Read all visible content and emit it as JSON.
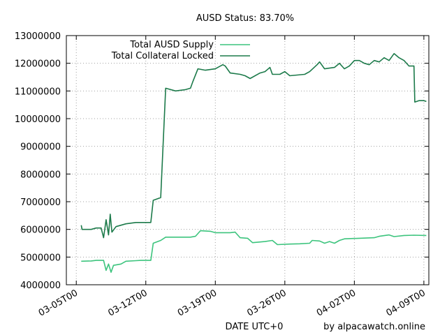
{
  "chart_data": {
    "type": "line",
    "title": "AUSD Status: 83.70%",
    "xlabel": "DATE UTC+0",
    "credit": "by alpacawatch.online",
    "ylabel": "",
    "xlim": [
      "2021-03-04T00:00",
      "2021-04-09T12:00"
    ],
    "ylim": [
      4000000,
      13000000
    ],
    "x_ticks": [
      {
        "date": "2021-03-05T00:00",
        "label": "03-05T00"
      },
      {
        "date": "2021-03-12T00:00",
        "label": "03-12T00"
      },
      {
        "date": "2021-03-19T00:00",
        "label": "03-19T00"
      },
      {
        "date": "2021-03-26T00:00",
        "label": "03-26T00"
      },
      {
        "date": "2021-04-02T00:00",
        "label": "04-02T00"
      },
      {
        "date": "2021-04-09T00:00",
        "label": "04-09T00"
      }
    ],
    "y_ticks": [
      4000000,
      5000000,
      6000000,
      7000000,
      8000000,
      9000000,
      10000000,
      11000000,
      12000000,
      13000000
    ],
    "grid": true,
    "legend_position": "top-left",
    "series": [
      {
        "name": "Total AUSD Supply",
        "color": "#3cc47d",
        "points": [
          [
            "2021-03-05T12:00",
            4850000
          ],
          [
            "2021-03-06T12:00",
            4860000
          ],
          [
            "2021-03-07T00:00",
            4880000
          ],
          [
            "2021-03-07T18:00",
            4880000
          ],
          [
            "2021-03-08T00:00",
            4520000
          ],
          [
            "2021-03-08T06:00",
            4750000
          ],
          [
            "2021-03-08T12:00",
            4450000
          ],
          [
            "2021-03-08T18:00",
            4700000
          ],
          [
            "2021-03-09T12:00",
            4750000
          ],
          [
            "2021-03-10T00:00",
            4850000
          ],
          [
            "2021-03-11T00:00",
            4870000
          ],
          [
            "2021-03-11T12:00",
            4880000
          ],
          [
            "2021-03-12T12:00",
            4880000
          ],
          [
            "2021-03-12T18:00",
            5500000
          ],
          [
            "2021-03-13T12:00",
            5600000
          ],
          [
            "2021-03-14T00:00",
            5720000
          ],
          [
            "2021-03-16T12:00",
            5720000
          ],
          [
            "2021-03-17T00:00",
            5750000
          ],
          [
            "2021-03-17T12:00",
            5950000
          ],
          [
            "2021-03-18T12:00",
            5930000
          ],
          [
            "2021-03-19T00:00",
            5880000
          ],
          [
            "2021-03-20T12:00",
            5880000
          ],
          [
            "2021-03-21T00:00",
            5900000
          ],
          [
            "2021-03-21T12:00",
            5700000
          ],
          [
            "2021-03-22T06:00",
            5680000
          ],
          [
            "2021-03-22T18:00",
            5520000
          ],
          [
            "2021-03-24T00:00",
            5560000
          ],
          [
            "2021-03-24T18:00",
            5600000
          ],
          [
            "2021-03-25T06:00",
            5450000
          ],
          [
            "2021-03-26T12:00",
            5470000
          ],
          [
            "2021-03-27T12:00",
            5480000
          ],
          [
            "2021-03-28T12:00",
            5500000
          ],
          [
            "2021-03-28T18:00",
            5600000
          ],
          [
            "2021-03-29T12:00",
            5580000
          ],
          [
            "2021-03-30T00:00",
            5500000
          ],
          [
            "2021-03-30T12:00",
            5560000
          ],
          [
            "2021-03-31T00:00",
            5500000
          ],
          [
            "2021-03-31T12:00",
            5600000
          ],
          [
            "2021-04-01T00:00",
            5660000
          ],
          [
            "2021-04-02T12:00",
            5680000
          ],
          [
            "2021-04-04T00:00",
            5700000
          ],
          [
            "2021-04-04T12:00",
            5750000
          ],
          [
            "2021-04-05T12:00",
            5800000
          ],
          [
            "2021-04-06T00:00",
            5740000
          ],
          [
            "2021-04-07T00:00",
            5780000
          ],
          [
            "2021-04-08T00:00",
            5790000
          ],
          [
            "2021-04-09T06:00",
            5780000
          ]
        ]
      },
      {
        "name": "Total Collateral Locked",
        "color": "#1c7a4a",
        "points": [
          [
            "2021-03-05T12:00",
            6150000
          ],
          [
            "2021-03-05T14:00",
            6000000
          ],
          [
            "2021-03-06T12:00",
            6000000
          ],
          [
            "2021-03-07T00:00",
            6050000
          ],
          [
            "2021-03-07T12:00",
            6050000
          ],
          [
            "2021-03-07T18:00",
            5700000
          ],
          [
            "2021-03-08T00:00",
            6350000
          ],
          [
            "2021-03-08T06:00",
            5800000
          ],
          [
            "2021-03-08T10:00",
            6550000
          ],
          [
            "2021-03-08T14:00",
            5900000
          ],
          [
            "2021-03-09T00:00",
            6100000
          ],
          [
            "2021-03-10T00:00",
            6200000
          ],
          [
            "2021-03-11T00:00",
            6250000
          ],
          [
            "2021-03-12T12:00",
            6250000
          ],
          [
            "2021-03-12T18:00",
            7050000
          ],
          [
            "2021-03-13T12:00",
            7150000
          ],
          [
            "2021-03-13T18:00",
            9100000
          ],
          [
            "2021-03-14T00:00",
            11100000
          ],
          [
            "2021-03-15T00:00",
            11000000
          ],
          [
            "2021-03-16T00:00",
            11050000
          ],
          [
            "2021-03-16T12:00",
            11100000
          ],
          [
            "2021-03-16T18:00",
            11350000
          ],
          [
            "2021-03-17T06:00",
            11800000
          ],
          [
            "2021-03-18T00:00",
            11750000
          ],
          [
            "2021-03-19T00:00",
            11800000
          ],
          [
            "2021-03-19T18:00",
            11950000
          ],
          [
            "2021-03-20T00:00",
            11900000
          ],
          [
            "2021-03-20T12:00",
            11650000
          ],
          [
            "2021-03-21T12:00",
            11600000
          ],
          [
            "2021-03-22T00:00",
            11550000
          ],
          [
            "2021-03-22T12:00",
            11450000
          ],
          [
            "2021-03-23T12:00",
            11650000
          ],
          [
            "2021-03-24T00:00",
            11700000
          ],
          [
            "2021-03-24T12:00",
            11850000
          ],
          [
            "2021-03-24T18:00",
            11600000
          ],
          [
            "2021-03-25T12:00",
            11600000
          ],
          [
            "2021-03-26T00:00",
            11700000
          ],
          [
            "2021-03-26T12:00",
            11550000
          ],
          [
            "2021-03-28T00:00",
            11600000
          ],
          [
            "2021-03-28T12:00",
            11700000
          ],
          [
            "2021-03-29T06:00",
            11950000
          ],
          [
            "2021-03-29T12:00",
            12050000
          ],
          [
            "2021-03-30T00:00",
            11800000
          ],
          [
            "2021-03-31T00:00",
            11850000
          ],
          [
            "2021-03-31T12:00",
            12000000
          ],
          [
            "2021-04-01T00:00",
            11800000
          ],
          [
            "2021-04-01T12:00",
            11900000
          ],
          [
            "2021-04-02T00:00",
            12100000
          ],
          [
            "2021-04-02T12:00",
            12100000
          ],
          [
            "2021-04-03T00:00",
            12000000
          ],
          [
            "2021-04-03T12:00",
            11950000
          ],
          [
            "2021-04-04T00:00",
            12100000
          ],
          [
            "2021-04-04T12:00",
            12050000
          ],
          [
            "2021-04-05T00:00",
            12200000
          ],
          [
            "2021-04-05T12:00",
            12100000
          ],
          [
            "2021-04-06T00:00",
            12350000
          ],
          [
            "2021-04-06T12:00",
            12200000
          ],
          [
            "2021-04-07T00:00",
            12100000
          ],
          [
            "2021-04-07T12:00",
            11900000
          ],
          [
            "2021-04-08T00:00",
            11900000
          ],
          [
            "2021-04-08T02:00",
            10600000
          ],
          [
            "2021-04-08T12:00",
            10650000
          ],
          [
            "2021-04-09T00:00",
            10650000
          ],
          [
            "2021-04-09T06:00",
            10620000
          ]
        ]
      }
    ]
  }
}
